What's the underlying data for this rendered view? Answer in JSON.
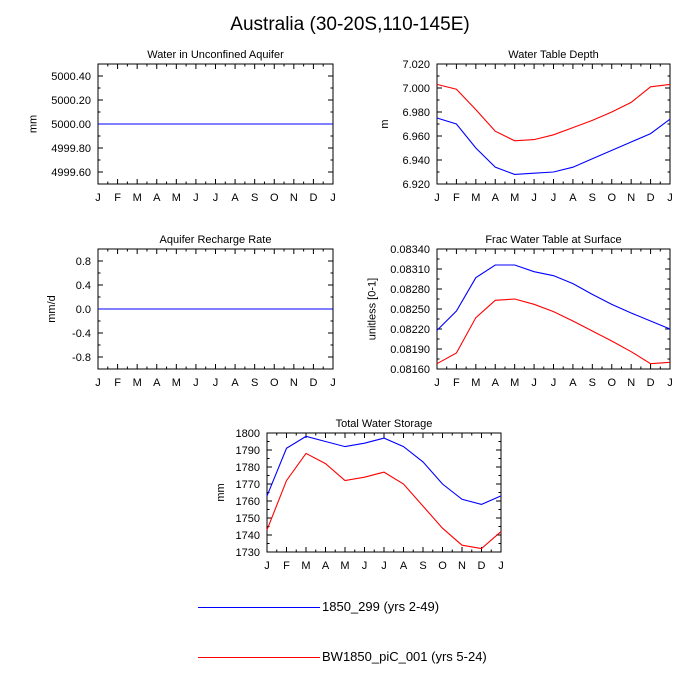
{
  "figure": {
    "title": "Australia (30-20S,110-145E)"
  },
  "legend": [
    {
      "label": "1850_299 (yrs 2-49)",
      "color": "#0000ff"
    },
    {
      "label": "BW1850_piC_001 (yrs 5-24)",
      "color": "#ff0000"
    }
  ],
  "chart_data": [
    {
      "type": "line",
      "title": "Water in Unconfined Aquifer",
      "xlabel": "",
      "ylabel": "mm",
      "categories": [
        "J",
        "F",
        "M",
        "A",
        "M",
        "J",
        "J",
        "A",
        "S",
        "O",
        "N",
        "D",
        "J"
      ],
      "ylim": [
        4999.5,
        5000.5
      ],
      "yticks": [
        4999.6,
        4999.8,
        5000.0,
        5000.2,
        5000.4
      ],
      "ytick_labels": [
        "4999.60",
        "4999.80",
        "5000.00",
        "5000.20",
        "5000.40"
      ],
      "series": [
        {
          "name": "1850_299 (yrs 2-49)",
          "color": "#0000ff",
          "values": [
            5000,
            5000,
            5000,
            5000,
            5000,
            5000,
            5000,
            5000,
            5000,
            5000,
            5000,
            5000,
            5000
          ]
        },
        {
          "name": "BW1850_piC_001 (yrs 5-24)",
          "color": "#ff0000",
          "values": [
            5000,
            5000,
            5000,
            5000,
            5000,
            5000,
            5000,
            5000,
            5000,
            5000,
            5000,
            5000,
            5000
          ]
        }
      ]
    },
    {
      "type": "line",
      "title": "Water Table Depth",
      "xlabel": "",
      "ylabel": "m",
      "categories": [
        "J",
        "F",
        "M",
        "A",
        "M",
        "J",
        "J",
        "A",
        "S",
        "O",
        "N",
        "D",
        "J"
      ],
      "ylim": [
        6.92,
        7.02
      ],
      "yticks": [
        6.92,
        6.94,
        6.96,
        6.98,
        7.0,
        7.02
      ],
      "ytick_labels": [
        "6.920",
        "6.940",
        "6.960",
        "6.980",
        "7.000",
        "7.020"
      ],
      "series": [
        {
          "name": "1850_299 (yrs 2-49)",
          "color": "#0000ff",
          "values": [
            6.975,
            6.97,
            6.95,
            6.934,
            6.928,
            6.929,
            6.93,
            6.934,
            6.941,
            6.948,
            6.955,
            6.962,
            6.974
          ]
        },
        {
          "name": "BW1850_piC_001 (yrs 5-24)",
          "color": "#ff0000",
          "values": [
            7.003,
            6.999,
            6.982,
            6.964,
            6.956,
            6.957,
            6.961,
            6.967,
            6.973,
            6.98,
            6.988,
            7.001,
            7.003
          ]
        }
      ]
    },
    {
      "type": "line",
      "title": "Aquifer Recharge Rate",
      "xlabel": "",
      "ylabel": "mm/d",
      "categories": [
        "J",
        "F",
        "M",
        "A",
        "M",
        "J",
        "J",
        "A",
        "S",
        "O",
        "N",
        "D",
        "J"
      ],
      "ylim": [
        -1.0,
        1.0
      ],
      "yticks": [
        -0.8,
        -0.4,
        0.0,
        0.4,
        0.8
      ],
      "ytick_labels": [
        "-0.8",
        "-0.4",
        "0.0",
        "0.4",
        "0.8"
      ],
      "series": [
        {
          "name": "1850_299 (yrs 2-49)",
          "color": "#0000ff",
          "values": [
            0,
            0,
            0,
            0,
            0,
            0,
            0,
            0,
            0,
            0,
            0,
            0,
            0
          ]
        },
        {
          "name": "BW1850_piC_001 (yrs 5-24)",
          "color": "#ff0000",
          "values": [
            0,
            0,
            0,
            0,
            0,
            0,
            0,
            0,
            0,
            0,
            0,
            0,
            0
          ]
        }
      ]
    },
    {
      "type": "line",
      "title": "Frac Water Table at Surface",
      "xlabel": "",
      "ylabel": "unitless [0-1]",
      "categories": [
        "J",
        "F",
        "M",
        "A",
        "M",
        "J",
        "J",
        "A",
        "S",
        "O",
        "N",
        "D",
        "J"
      ],
      "ylim": [
        0.0816,
        0.0834
      ],
      "yticks": [
        0.0816,
        0.0819,
        0.0822,
        0.0825,
        0.0828,
        0.0831,
        0.0834
      ],
      "ytick_labels": [
        "0.08160",
        "0.08190",
        "0.08220",
        "0.08250",
        "0.08280",
        "0.08310",
        "0.08340"
      ],
      "series": [
        {
          "name": "1850_299 (yrs 2-49)",
          "color": "#0000ff",
          "values": [
            0.08218,
            0.08247,
            0.08297,
            0.08316,
            0.08316,
            0.08306,
            0.083,
            0.08288,
            0.08272,
            0.08257,
            0.08244,
            0.08232,
            0.0822
          ]
        },
        {
          "name": "BW1850_piC_001 (yrs 5-24)",
          "color": "#ff0000",
          "values": [
            0.08168,
            0.08184,
            0.08237,
            0.08263,
            0.08265,
            0.08257,
            0.08246,
            0.08232,
            0.08217,
            0.08202,
            0.08186,
            0.08168,
            0.0817
          ]
        }
      ]
    },
    {
      "type": "line",
      "title": "Total Water Storage",
      "xlabel": "",
      "ylabel": "mm",
      "categories": [
        "J",
        "F",
        "M",
        "A",
        "M",
        "J",
        "J",
        "A",
        "S",
        "O",
        "N",
        "D",
        "J"
      ],
      "ylim": [
        1730,
        1800
      ],
      "yticks": [
        1730,
        1740,
        1750,
        1760,
        1770,
        1780,
        1790,
        1800
      ],
      "ytick_labels": [
        "1730",
        "1740",
        "1750",
        "1760",
        "1770",
        "1780",
        "1790",
        "1800"
      ],
      "series": [
        {
          "name": "1850_299 (yrs 2-49)",
          "color": "#0000ff",
          "values": [
            1763,
            1791,
            1798,
            1795,
            1792,
            1794,
            1797,
            1792,
            1783,
            1770,
            1761,
            1758,
            1763
          ]
        },
        {
          "name": "BW1850_piC_001 (yrs 5-24)",
          "color": "#ff0000",
          "values": [
            1743,
            1772,
            1788,
            1782,
            1772,
            1774,
            1777,
            1770,
            1757,
            1744,
            1734,
            1732,
            1742
          ]
        }
      ]
    }
  ]
}
